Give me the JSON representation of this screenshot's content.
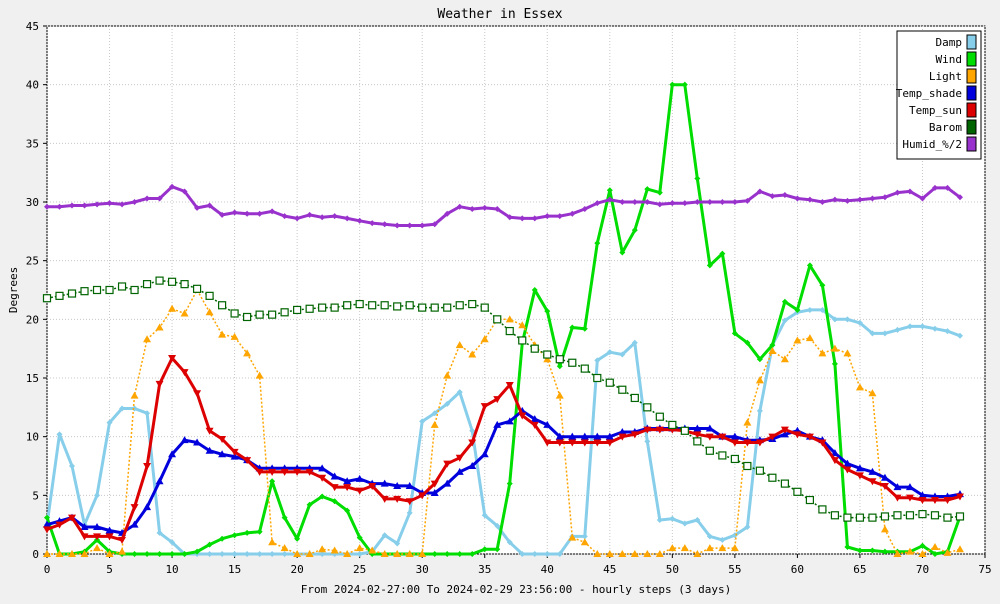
{
  "chart_data": {
    "type": "line",
    "title": "Weather in Essex",
    "xlabel": "From 2024-02-27:00 To 2024-02-29 23:56:00 - hourly steps (3 days)",
    "ylabel": "Degrees",
    "xlim": [
      0,
      75
    ],
    "ylim": [
      0,
      45
    ],
    "xticks": [
      0,
      5,
      10,
      15,
      20,
      25,
      30,
      35,
      40,
      45,
      50,
      55,
      60,
      65,
      70,
      75
    ],
    "yticks": [
      0,
      5,
      10,
      15,
      20,
      25,
      30,
      35,
      40,
      45
    ],
    "grid": true,
    "legend_position": "top-right",
    "series": [
      {
        "name": "Damp",
        "color": "#87ceeb",
        "dash": "",
        "marker": "diamond",
        "values": [
          2.5,
          10.2,
          7.5,
          2.5,
          5.0,
          11.2,
          12.4,
          12.4,
          12.0,
          1.8,
          1.0,
          0.0,
          0.0,
          0.0,
          0.0,
          0.0,
          0.0,
          0.0,
          0.0,
          0.0,
          0.0,
          0.0,
          0.0,
          0.0,
          0.0,
          0.0,
          0.2,
          1.6,
          0.9,
          3.5,
          11.3,
          12.0,
          12.8,
          13.8,
          10.5,
          3.3,
          2.4,
          1.0,
          0.0,
          0.0,
          0.0,
          0.0,
          1.5,
          1.5,
          16.5,
          17.2,
          17.0,
          18.0,
          9.6,
          2.9,
          3.0,
          2.6,
          2.9,
          1.5,
          1.2,
          1.6,
          2.3,
          12.2,
          17.8,
          19.9,
          20.6,
          20.8,
          20.8,
          20.0,
          20.0,
          19.7,
          18.8,
          18.8,
          19.1,
          19.4,
          19.4,
          19.2,
          19.0,
          18.6
        ]
      },
      {
        "name": "Wind",
        "color": "#00dd00",
        "dash": "",
        "marker": "diamond",
        "values": [
          3.1,
          0.0,
          0.0,
          0.2,
          1.2,
          0.2,
          0.0,
          0.0,
          0.0,
          0.0,
          0.0,
          0.0,
          0.2,
          0.8,
          1.3,
          1.6,
          1.8,
          1.9,
          6.2,
          3.1,
          1.3,
          4.2,
          4.9,
          4.5,
          3.7,
          1.4,
          0.0,
          0.0,
          0.0,
          0.0,
          0.0,
          0.0,
          0.0,
          0.0,
          0.0,
          0.4,
          0.4,
          6.0,
          18.0,
          22.5,
          20.7,
          16.0,
          19.3,
          19.2,
          26.5,
          31.0,
          25.7,
          27.6,
          31.1,
          30.8,
          40.0,
          40.0,
          32.0,
          24.6,
          25.6,
          18.8,
          18.0,
          16.6,
          17.8,
          21.5,
          20.8,
          24.6,
          22.9,
          16.2,
          0.6,
          0.3,
          0.3,
          0.2,
          0.2,
          0.2,
          0.7,
          0.0,
          0.2,
          3.2
        ]
      },
      {
        "name": "Light",
        "color": "#ffa500",
        "dash": "2 2",
        "marker": "triangle-up",
        "values": [
          0.0,
          0.0,
          0.0,
          0.0,
          0.5,
          0.0,
          0.2,
          13.5,
          18.3,
          19.3,
          20.9,
          20.5,
          22.5,
          20.6,
          18.7,
          18.5,
          17.1,
          15.2,
          1.0,
          0.5,
          0.0,
          0.0,
          0.4,
          0.3,
          0.0,
          0.5,
          0.3,
          0.0,
          0.0,
          0.0,
          0.0,
          11.0,
          15.2,
          17.8,
          17.0,
          18.3,
          20.0,
          20.0,
          19.5,
          17.8,
          16.6,
          13.5,
          1.4,
          1.0,
          0.0,
          0.0,
          0.0,
          0.0,
          0.0,
          0.0,
          0.5,
          0.5,
          0.0,
          0.5,
          0.5,
          0.5,
          11.2,
          14.8,
          17.3,
          16.6,
          18.2,
          18.4,
          17.1,
          17.5,
          17.1,
          14.2,
          13.7,
          2.1,
          0.0,
          0.2,
          0.0,
          0.6,
          0.1,
          0.4
        ]
      },
      {
        "name": "Temp_shade",
        "color": "#0000dd",
        "dash": "",
        "marker": "triangle-up",
        "values": [
          2.5,
          2.8,
          3.1,
          2.3,
          2.3,
          2.0,
          1.8,
          2.5,
          4.0,
          6.2,
          8.5,
          9.7,
          9.5,
          8.8,
          8.5,
          8.3,
          8.0,
          7.3,
          7.3,
          7.3,
          7.3,
          7.3,
          7.3,
          6.6,
          6.2,
          6.4,
          6.0,
          6.0,
          5.8,
          5.8,
          5.2,
          5.2,
          6.0,
          7.0,
          7.5,
          8.5,
          11.0,
          11.3,
          12.2,
          11.5,
          11.0,
          10.0,
          10.0,
          10.0,
          10.0,
          10.0,
          10.4,
          10.4,
          10.7,
          10.7,
          10.7,
          10.7,
          10.7,
          10.7,
          10.0,
          10.0,
          9.7,
          9.7,
          9.8,
          10.2,
          10.5,
          10.0,
          9.7,
          8.6,
          7.7,
          7.3,
          7.0,
          6.5,
          5.7,
          5.7,
          5.0,
          4.9,
          4.9,
          5.1
        ]
      },
      {
        "name": "Temp_sun",
        "color": "#dd0000",
        "dash": "",
        "marker": "triangle-down",
        "values": [
          2.1,
          2.5,
          3.1,
          1.5,
          1.5,
          1.5,
          1.2,
          4.0,
          7.5,
          14.5,
          16.7,
          15.5,
          13.7,
          10.5,
          9.8,
          8.7,
          8.0,
          7.0,
          7.0,
          7.0,
          7.0,
          7.0,
          6.5,
          5.7,
          5.7,
          5.4,
          5.8,
          4.7,
          4.7,
          4.5,
          5.0,
          6.0,
          7.7,
          8.2,
          9.5,
          12.6,
          13.2,
          14.4,
          11.8,
          11.0,
          9.5,
          9.5,
          9.5,
          9.5,
          9.5,
          9.5,
          10.0,
          10.2,
          10.6,
          10.6,
          10.6,
          10.5,
          10.2,
          10.0,
          10.0,
          9.5,
          9.5,
          9.5,
          10.0,
          10.6,
          10.2,
          10.0,
          9.5,
          8.0,
          7.2,
          6.7,
          6.2,
          5.8,
          4.8,
          4.8,
          4.6,
          4.6,
          4.6,
          4.9
        ]
      },
      {
        "name": "Barom",
        "color": "#006400",
        "dash": "2 2",
        "marker": "square",
        "values": [
          21.8,
          22.0,
          22.2,
          22.4,
          22.5,
          22.5,
          22.8,
          22.5,
          23.0,
          23.3,
          23.2,
          23.0,
          22.6,
          22.0,
          21.2,
          20.5,
          20.2,
          20.4,
          20.4,
          20.6,
          20.8,
          20.9,
          21.0,
          21.0,
          21.2,
          21.3,
          21.2,
          21.2,
          21.1,
          21.2,
          21.0,
          21.0,
          21.0,
          21.2,
          21.3,
          21.0,
          20.0,
          19.0,
          18.2,
          17.5,
          17.0,
          16.6,
          16.3,
          15.8,
          15.0,
          14.6,
          14.0,
          13.3,
          12.5,
          11.7,
          11.0,
          10.5,
          9.6,
          8.8,
          8.4,
          8.1,
          7.5,
          7.1,
          6.5,
          6.0,
          5.3,
          4.6,
          3.8,
          3.3,
          3.1,
          3.1,
          3.1,
          3.2,
          3.3,
          3.3,
          3.4,
          3.3,
          3.1,
          3.2
        ]
      },
      {
        "name": "Humid_%/2",
        "color": "#9932cc",
        "dash": "",
        "marker": "diamond",
        "values": [
          29.6,
          29.6,
          29.7,
          29.7,
          29.8,
          29.9,
          29.8,
          30.0,
          30.3,
          30.3,
          31.3,
          30.9,
          29.5,
          29.7,
          28.9,
          29.1,
          29.0,
          29.0,
          29.2,
          28.8,
          28.6,
          28.9,
          28.7,
          28.8,
          28.6,
          28.4,
          28.2,
          28.1,
          28.0,
          28.0,
          28.0,
          28.1,
          29.0,
          29.6,
          29.4,
          29.5,
          29.4,
          28.7,
          28.6,
          28.6,
          28.8,
          28.8,
          29.0,
          29.4,
          29.9,
          30.2,
          30.0,
          30.0,
          30.0,
          29.8,
          29.9,
          29.9,
          30.0,
          30.0,
          30.0,
          30.0,
          30.1,
          30.9,
          30.5,
          30.6,
          30.3,
          30.2,
          30.0,
          30.2,
          30.1,
          30.2,
          30.3,
          30.4,
          30.8,
          30.9,
          30.3,
          31.2,
          31.2,
          30.4
        ]
      }
    ]
  }
}
